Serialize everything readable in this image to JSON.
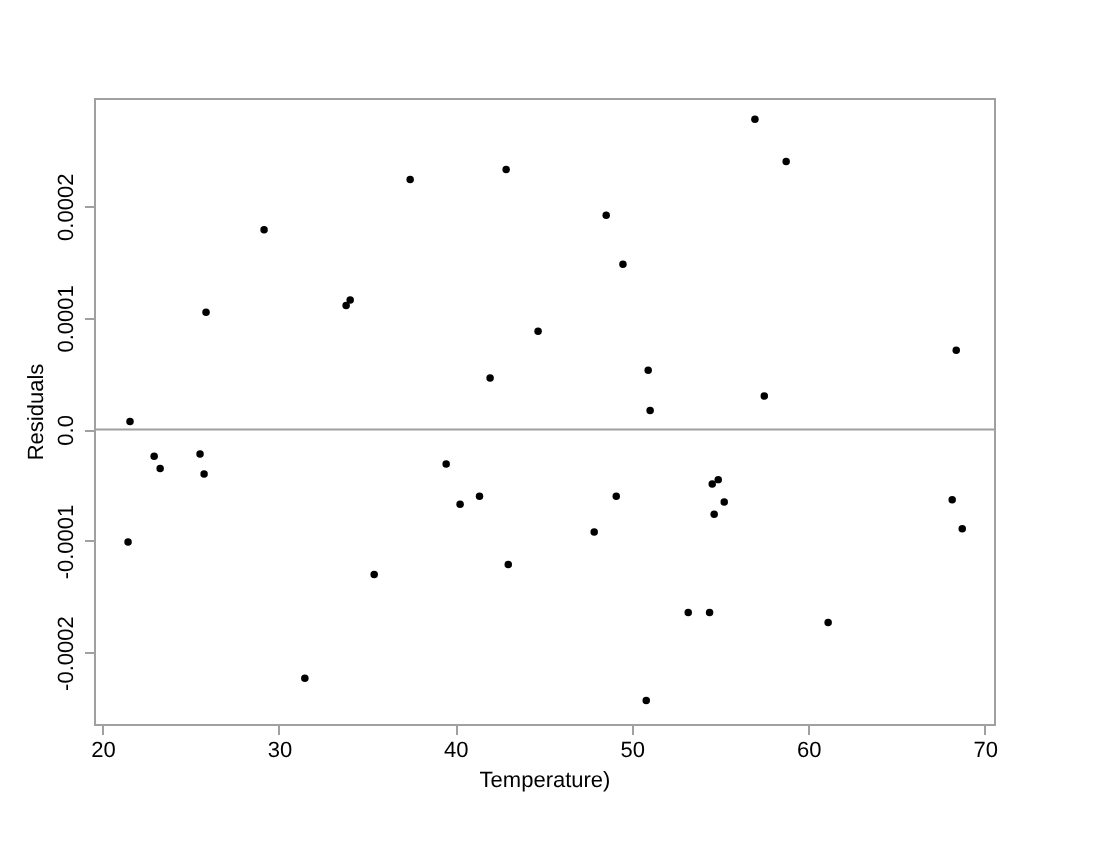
{
  "chart_data": {
    "type": "scatter",
    "xlabel": "Temperature)",
    "ylabel": "Residuals",
    "x": [
      21.56,
      25.87,
      29.16,
      33.81,
      34.04,
      37.44,
      42.88,
      41.97,
      44.69,
      56.98,
      58.75,
      48.55,
      49.5,
      50.93,
      68.39,
      57.51,
      51.04,
      22.93,
      23.27,
      25.53,
      25.76,
      21.45,
      35.4,
      31.47,
      39.48,
      40.27,
      41.37,
      43.0,
      49.12,
      47.87,
      54.56,
      54.9,
      55.24,
      54.67,
      53.2,
      54.41,
      61.13,
      50.82,
      68.16,
      68.73
    ],
    "series": [
      {
        "color": "#000000",
        "values": [
          7e-06,
          0.000105,
          0.000179,
          0.000111,
          0.000116,
          0.000224,
          0.000233,
          4.6e-05,
          8.8e-05,
          0.000278,
          0.00024,
          0.000192,
          0.000148,
          5.3e-05,
          7.1e-05,
          3e-05,
          1.7e-05,
          -2.4e-05,
          -3.5e-05,
          -2.2e-05,
          -4e-05,
          -0.000101,
          -0.00013,
          -0.000223,
          -3.1e-05,
          -6.7e-05,
          -6e-05,
          -0.000121,
          -6e-05,
          -9.2e-05,
          -4.9e-05,
          -4.5e-05,
          -6.5e-05,
          -7.6e-05,
          -0.000164,
          -0.000164,
          -0.000173,
          -0.000243,
          -6.3e-05,
          -8.9e-05
        ]
      }
    ],
    "xlim": [
      19.52,
      70.53
    ],
    "ylim": [
      -0.000264,
      0.000297
    ],
    "xticks": [
      20,
      30,
      40,
      50,
      60,
      70
    ],
    "yticks": [
      -0.0002,
      -0.0001,
      {
        "value": 0,
        "label": "0.0"
      },
      0.0001,
      0.0002
    ],
    "ref_lines": [
      {
        "axis": "y",
        "value": 0,
        "color": "#a0a0a0"
      }
    ],
    "marker": "circle",
    "grid": false
  }
}
